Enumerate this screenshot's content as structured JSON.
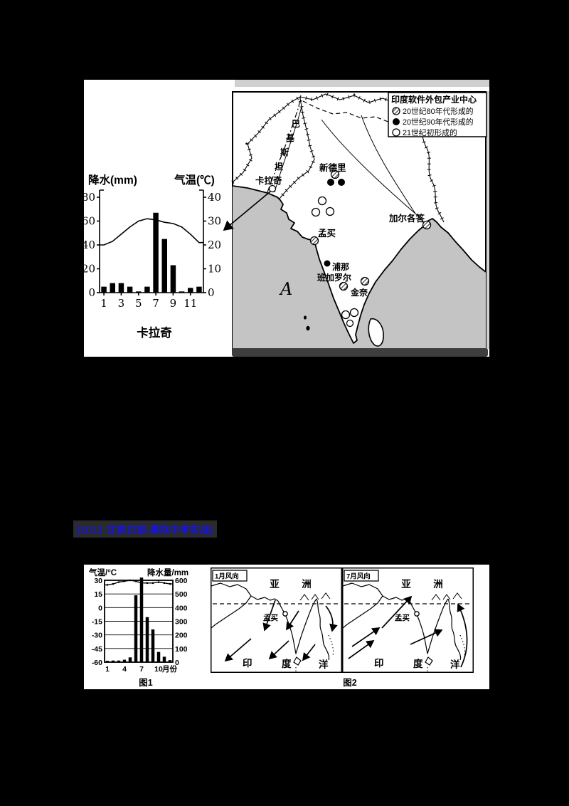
{
  "page": {
    "background": "#000000"
  },
  "heading": {
    "text": "(2012·甘肃白银·模拟中考实战)",
    "color": "#1414e8",
    "highlight": "#2b2b2b"
  },
  "figure1": {
    "climate_chart": {
      "precip_axis_label": "降水(mm)",
      "temp_axis_label": "气温(℃)",
      "station_caption": "卡拉奇"
    },
    "map": {
      "legend": {
        "title": "印度软件外包产业中心",
        "items": [
          {
            "symbol": "hatched-circle",
            "label": "20世纪80年代形成的"
          },
          {
            "symbol": "filled-circle",
            "label": "20世纪90年代形成的"
          },
          {
            "symbol": "open-circle",
            "label": "21世纪初形成的"
          }
        ]
      },
      "labels": {
        "pakistan_chars": [
          "巴",
          "基",
          "斯",
          "坦"
        ],
        "new_delhi": "新德里",
        "karachi": "卡拉奇",
        "kolkata": "加尔各答",
        "mumbai": "孟买",
        "pune": "浦那",
        "bangalore": "班加罗尔",
        "chennai": "金奈",
        "region_a": "A"
      },
      "ocean_color": "#c4c4c4"
    }
  },
  "figure2": {
    "climate_chart": {
      "temp_axis_label": "气温/°C",
      "precip_axis_label": "降水量/mm",
      "caption": "图1"
    },
    "wind_maps": {
      "january_title": "1月风向",
      "july_title": "7月风向",
      "asia_chars": [
        "亚",
        "洲"
      ],
      "mumbai_label": "孟买",
      "ocean_chars": [
        "印",
        "度",
        "洋"
      ],
      "caption": "图2"
    }
  },
  "chart_data": [
    {
      "type": "bar+line",
      "station": "卡拉奇",
      "months": [
        1,
        2,
        3,
        4,
        5,
        6,
        7,
        8,
        9,
        10,
        11,
        12
      ],
      "x_tick_months": [
        1,
        3,
        5,
        7,
        9,
        11
      ],
      "x_tick_labels": [
        "1",
        "3",
        "5",
        "7",
        "9",
        "11"
      ],
      "precipitation_mm": [
        5,
        8,
        8,
        5,
        1,
        5,
        67,
        45,
        23,
        1,
        4,
        5
      ],
      "temperature_c": [
        20,
        21.5,
        24.5,
        27.5,
        30,
        31,
        30.5,
        29.5,
        29,
        27.5,
        24.5,
        21
      ],
      "precip_axis": {
        "label": "降水(mm)",
        "ticks": [
          80,
          60,
          40,
          20,
          0
        ],
        "range": [
          0,
          80
        ],
        "side": "left"
      },
      "temp_axis": {
        "label": "气温(℃)",
        "ticks": [
          40,
          30,
          20,
          10,
          0
        ],
        "range": [
          0,
          40
        ],
        "side": "right"
      },
      "grid": false
    },
    {
      "type": "bar+line",
      "station": "孟买(图1)",
      "months": [
        1,
        2,
        3,
        4,
        5,
        6,
        7,
        8,
        9,
        10,
        11,
        12
      ],
      "x_tick_months": [
        1,
        4,
        7,
        10
      ],
      "x_tick_labels": [
        "1",
        "4",
        "7",
        "10"
      ],
      "x_suffix": "月份",
      "precipitation_mm": [
        10,
        12,
        12,
        18,
        35,
        490,
        620,
        330,
        240,
        75,
        40,
        15
      ],
      "temperature_c": [
        25,
        26,
        28,
        29,
        30,
        29,
        27,
        27,
        27,
        28,
        27,
        26
      ],
      "temp_axis": {
        "label": "气温/°C",
        "ticks": [
          30,
          15,
          0,
          -15,
          -30,
          -45,
          -60
        ],
        "range": [
          -60,
          30
        ],
        "side": "left"
      },
      "precip_axis": {
        "label": "降水量/mm",
        "ticks": [
          600,
          500,
          400,
          300,
          200,
          100,
          0
        ],
        "range": [
          0,
          600
        ],
        "side": "right"
      },
      "grid": true
    }
  ]
}
